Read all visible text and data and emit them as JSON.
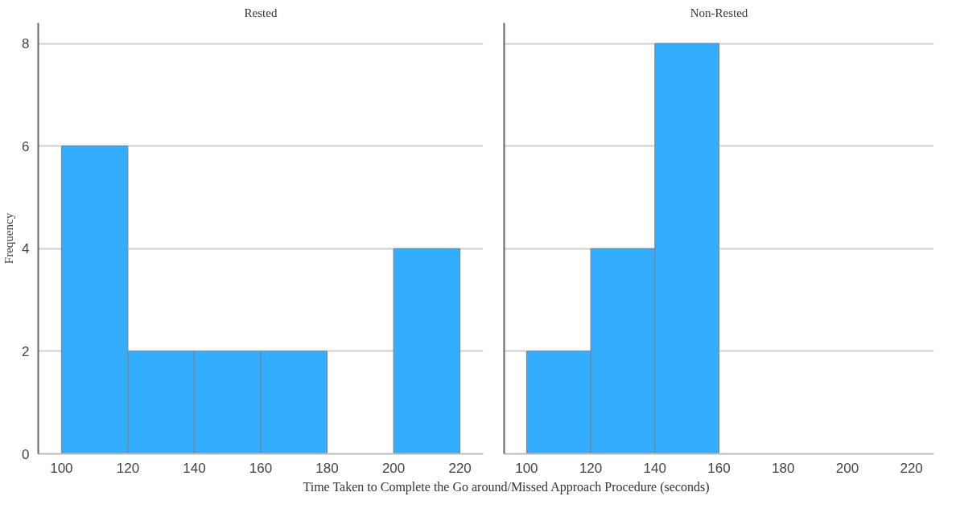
{
  "chart_data": [
    {
      "type": "histogram",
      "title": "Rested",
      "ylabel": "Frequency",
      "xlabel": "Time Taken to Complete the Go around/Missed Approach Procedure (seconds)",
      "bins": [
        100,
        120,
        140,
        160,
        180,
        200,
        220
      ],
      "values": [
        6,
        2,
        2,
        2,
        0,
        4
      ],
      "color": "#33adff",
      "xlim": [
        93,
        227
      ],
      "xticks": [
        100,
        120,
        140,
        160,
        180,
        200,
        220
      ],
      "ylim": [
        0,
        8.4
      ],
      "yticks": [
        0,
        2,
        4,
        6,
        8
      ],
      "grid": "y"
    },
    {
      "type": "histogram",
      "title": "Non-Rested",
      "bins": [
        100,
        120,
        140,
        160,
        180,
        200,
        220
      ],
      "values": [
        2,
        4,
        8,
        0,
        0,
        0
      ],
      "color": "#33adff",
      "xlim": [
        93,
        227
      ],
      "xticks": [
        100,
        120,
        140,
        160,
        180,
        200,
        220
      ],
      "ylim": [
        0,
        8.4
      ],
      "yticks": [
        0,
        2,
        4,
        6,
        8
      ],
      "grid": "y",
      "tick_labels": "x"
    }
  ]
}
